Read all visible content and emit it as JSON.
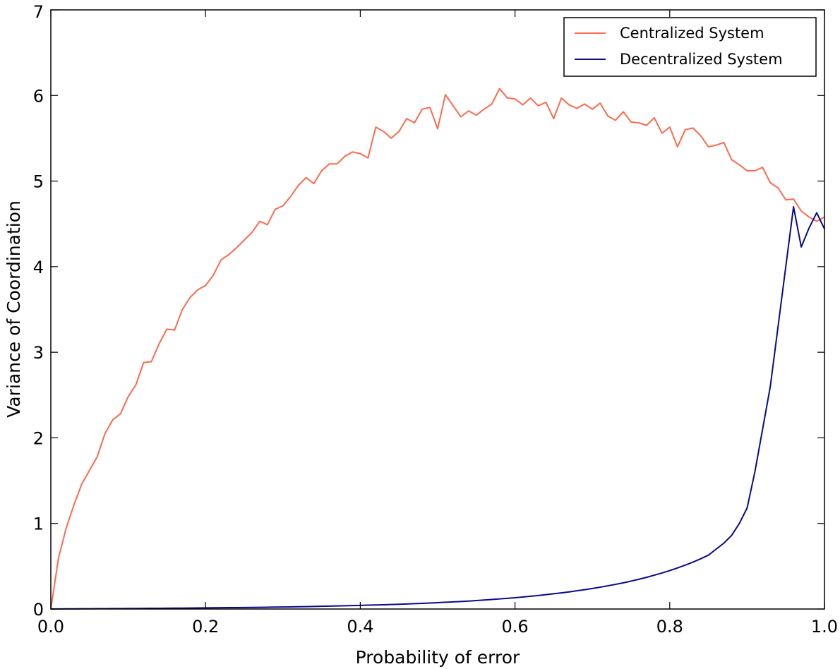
{
  "chart_data": {
    "type": "line",
    "xlabel": "Probability of error",
    "ylabel": "Variance of Coordination",
    "xlim": [
      0.0,
      1.0
    ],
    "ylim": [
      0,
      7
    ],
    "xticks": [
      "0.0",
      "0.2",
      "0.4",
      "0.6",
      "0.8",
      "1.0"
    ],
    "yticks": [
      "0",
      "1",
      "2",
      "3",
      "4",
      "5",
      "6",
      "7"
    ],
    "grid": false,
    "legend_position": "top-right",
    "x": [
      0.0,
      0.01,
      0.02,
      0.03,
      0.04,
      0.05,
      0.06,
      0.07,
      0.08,
      0.09,
      0.1,
      0.11,
      0.12,
      0.13,
      0.14,
      0.15,
      0.16,
      0.17,
      0.18,
      0.19,
      0.2,
      0.21,
      0.22,
      0.23,
      0.24,
      0.25,
      0.26,
      0.27,
      0.28,
      0.29,
      0.3,
      0.31,
      0.32,
      0.33,
      0.34,
      0.35,
      0.36,
      0.37,
      0.38,
      0.39,
      0.4,
      0.41,
      0.42,
      0.43,
      0.44,
      0.45,
      0.46,
      0.47,
      0.48,
      0.49,
      0.5,
      0.51,
      0.52,
      0.53,
      0.54,
      0.55,
      0.56,
      0.57,
      0.58,
      0.59,
      0.6,
      0.61,
      0.62,
      0.63,
      0.64,
      0.65,
      0.66,
      0.67,
      0.68,
      0.69,
      0.7,
      0.71,
      0.72,
      0.73,
      0.74,
      0.75,
      0.76,
      0.77,
      0.78,
      0.79,
      0.8,
      0.81,
      0.82,
      0.83,
      0.84,
      0.85,
      0.86,
      0.87,
      0.88,
      0.89,
      0.9,
      0.91,
      0.92,
      0.93,
      0.94,
      0.95,
      0.96,
      0.97,
      0.98,
      0.99,
      1.0
    ],
    "series": [
      {
        "name": "Centralized System",
        "color": "#ff6a4d",
        "values": [
          0.0,
          0.6,
          0.95,
          1.22,
          1.46,
          1.62,
          1.78,
          2.05,
          2.21,
          2.28,
          2.48,
          2.62,
          2.88,
          2.89,
          3.1,
          3.27,
          3.26,
          3.5,
          3.64,
          3.73,
          3.78,
          3.9,
          4.08,
          4.14,
          4.22,
          4.31,
          4.4,
          4.53,
          4.49,
          4.67,
          4.71,
          4.82,
          4.95,
          5.04,
          4.97,
          5.12,
          5.2,
          5.2,
          5.29,
          5.34,
          5.32,
          5.27,
          5.63,
          5.58,
          5.5,
          5.58,
          5.73,
          5.68,
          5.84,
          5.86,
          5.61,
          6.01,
          5.88,
          5.75,
          5.82,
          5.77,
          5.84,
          5.9,
          6.08,
          5.97,
          5.96,
          5.89,
          5.97,
          5.88,
          5.92,
          5.73,
          5.97,
          5.89,
          5.85,
          5.9,
          5.84,
          5.91,
          5.76,
          5.71,
          5.81,
          5.69,
          5.68,
          5.65,
          5.74,
          5.56,
          5.63,
          5.4,
          5.6,
          5.62,
          5.53,
          5.4,
          5.42,
          5.45,
          5.25,
          5.19,
          5.12,
          5.12,
          5.16,
          4.98,
          4.92,
          4.78,
          4.79,
          4.65,
          4.58,
          4.53,
          4.58
        ]
      },
      {
        "name": "Decentralized System",
        "color": "#0a0a8c",
        "values": [
          0.0,
          0.001,
          0.002,
          0.002,
          0.003,
          0.003,
          0.004,
          0.004,
          0.005,
          0.005,
          0.006,
          0.006,
          0.007,
          0.008,
          0.008,
          0.009,
          0.01,
          0.01,
          0.011,
          0.012,
          0.013,
          0.014,
          0.015,
          0.016,
          0.017,
          0.018,
          0.019,
          0.02,
          0.021,
          0.023,
          0.024,
          0.025,
          0.027,
          0.028,
          0.03,
          0.032,
          0.034,
          0.036,
          0.038,
          0.04,
          0.042,
          0.045,
          0.047,
          0.05,
          0.053,
          0.056,
          0.059,
          0.063,
          0.066,
          0.07,
          0.074,
          0.079,
          0.083,
          0.088,
          0.093,
          0.099,
          0.105,
          0.111,
          0.118,
          0.125,
          0.132,
          0.14,
          0.149,
          0.158,
          0.168,
          0.178,
          0.189,
          0.2,
          0.213,
          0.226,
          0.24,
          0.255,
          0.271,
          0.288,
          0.306,
          0.326,
          0.347,
          0.37,
          0.395,
          0.421,
          0.449,
          0.48,
          0.513,
          0.548,
          0.587,
          0.629,
          0.7,
          0.77,
          0.86,
          1.0,
          1.18,
          1.6,
          2.1,
          2.6,
          3.3,
          4.0,
          4.7,
          4.23,
          4.45,
          4.63,
          4.44
        ]
      }
    ]
  }
}
